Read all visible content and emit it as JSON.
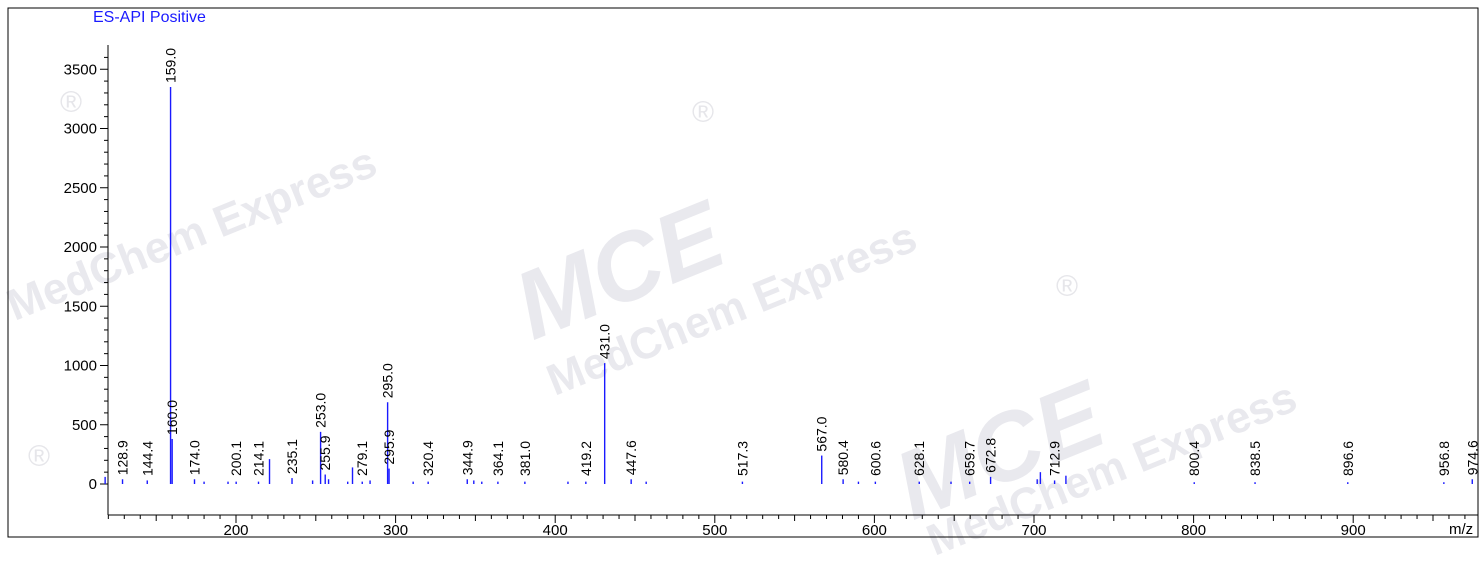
{
  "watermark": {
    "brand": "MCE",
    "sub": "MedChem Express",
    "reg": "®"
  },
  "chart_data": {
    "type": "bar",
    "title": "ES-API Positive",
    "xlabel": "m/z",
    "ylabel": "",
    "xlim": [
      113,
      982
    ],
    "ylim": [
      -100,
      3720
    ],
    "xticks": [
      200,
      300,
      400,
      500,
      600,
      700,
      800,
      900
    ],
    "yticks": [
      0,
      500,
      1000,
      1500,
      2000,
      2500,
      3000,
      3500
    ],
    "grid": false,
    "color": "#1a1aff",
    "peaks": [
      {
        "x": 118.0,
        "y": 60
      },
      {
        "x": 128.9,
        "y": 40,
        "label": "128.9"
      },
      {
        "x": 144.4,
        "y": 30,
        "label": "144.4"
      },
      {
        "x": 159.0,
        "y": 3350,
        "label": "159.0"
      },
      {
        "x": 160.0,
        "y": 380,
        "label": "160.0"
      },
      {
        "x": 174.0,
        "y": 40,
        "label": "174.0"
      },
      {
        "x": 180.0,
        "y": 20
      },
      {
        "x": 195.0,
        "y": 20
      },
      {
        "x": 200.1,
        "y": 20,
        "label": "200.1"
      },
      {
        "x": 214.1,
        "y": 20,
        "label": "214.1"
      },
      {
        "x": 221.0,
        "y": 210
      },
      {
        "x": 235.1,
        "y": 50,
        "label": "235.1"
      },
      {
        "x": 248.0,
        "y": 30
      },
      {
        "x": 253.0,
        "y": 440,
        "label": "253.0"
      },
      {
        "x": 255.9,
        "y": 80,
        "label": "255.9"
      },
      {
        "x": 258.0,
        "y": 40
      },
      {
        "x": 270.0,
        "y": 20
      },
      {
        "x": 273.0,
        "y": 140
      },
      {
        "x": 279.1,
        "y": 20,
        "label": "279.1"
      },
      {
        "x": 284.0,
        "y": 30
      },
      {
        "x": 295.0,
        "y": 690,
        "label": "295.0"
      },
      {
        "x": 295.9,
        "y": 130,
        "label": "295.9"
      },
      {
        "x": 311.0,
        "y": 20
      },
      {
        "x": 320.4,
        "y": 20,
        "label": "320.4"
      },
      {
        "x": 344.9,
        "y": 40,
        "label": "344.9"
      },
      {
        "x": 349.0,
        "y": 30
      },
      {
        "x": 354.0,
        "y": 20
      },
      {
        "x": 364.1,
        "y": 20,
        "label": "364.1"
      },
      {
        "x": 381.0,
        "y": 20,
        "label": "381.0"
      },
      {
        "x": 408.0,
        "y": 20
      },
      {
        "x": 419.2,
        "y": 20,
        "label": "419.2"
      },
      {
        "x": 431.0,
        "y": 1020,
        "label": "431.0"
      },
      {
        "x": 447.6,
        "y": 40,
        "label": "447.6"
      },
      {
        "x": 457.0,
        "y": 20
      },
      {
        "x": 517.3,
        "y": 20,
        "label": "517.3"
      },
      {
        "x": 567.0,
        "y": 240,
        "label": "567.0"
      },
      {
        "x": 580.4,
        "y": 40,
        "label": "580.4"
      },
      {
        "x": 590.0,
        "y": 20
      },
      {
        "x": 600.6,
        "y": 20,
        "label": "600.6"
      },
      {
        "x": 628.1,
        "y": 20,
        "label": "628.1"
      },
      {
        "x": 648.0,
        "y": 20
      },
      {
        "x": 659.7,
        "y": 20,
        "label": "659.7"
      },
      {
        "x": 672.8,
        "y": 60,
        "label": "672.8"
      },
      {
        "x": 702.0,
        "y": 40
      },
      {
        "x": 704.0,
        "y": 100
      },
      {
        "x": 712.9,
        "y": 30,
        "label": "712.9"
      },
      {
        "x": 720.0,
        "y": 70
      },
      {
        "x": 800.4,
        "y": 15,
        "label": "800.4"
      },
      {
        "x": 838.5,
        "y": 15,
        "label": "838.5"
      },
      {
        "x": 896.6,
        "y": 15,
        "label": "896.6"
      },
      {
        "x": 956.8,
        "y": 15,
        "label": "956.8"
      },
      {
        "x": 974.6,
        "y": 40,
        "label": "974.6"
      }
    ]
  }
}
